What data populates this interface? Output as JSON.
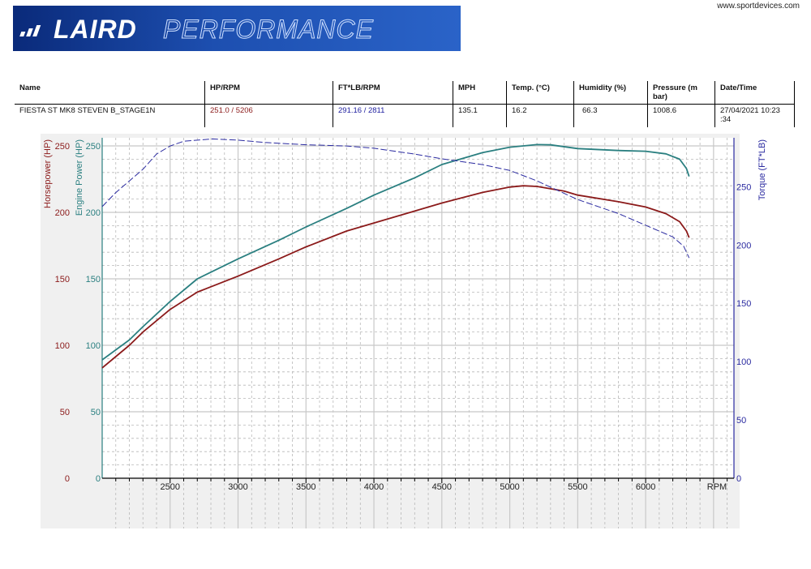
{
  "header": {
    "logo_text": "LAIRDPERFORMANCE",
    "website": "www.sportdevices.com"
  },
  "table": {
    "columns": [
      "Name",
      "HP/RPM",
      "FT*LB/RPM",
      "MPH",
      "Temp. (°C)",
      "Humidity (%)",
      "Pressure (m bar)",
      "Date/Time"
    ],
    "row": [
      "FIESTA ST MK8 STEVEN B_STAGE1N",
      "251.0 / 5206",
      "291.16 / 2811",
      "135.1",
      "16.2",
      "66.3",
      "1008.6",
      "27/04/2021 10:23 :34"
    ]
  },
  "colors": {
    "horsepower": "#8b1a1a",
    "engine_power": "#2a7f80",
    "torque": "#2a2aa0",
    "plot_bg": "#ffffff",
    "frame_bg": "#f0f0f0"
  },
  "chart_data": {
    "type": "line",
    "xlabel": "RPM",
    "xlim": [
      2000,
      6650
    ],
    "x_ticks": [
      2500,
      3000,
      3500,
      4000,
      4500,
      5000,
      5500,
      6000
    ],
    "grid": true,
    "axes": [
      {
        "id": "hp",
        "label": "Horsepower (HP)",
        "side": "left",
        "ylim": [
          0,
          250
        ],
        "ticks": [
          0,
          50,
          100,
          150,
          200,
          250
        ]
      },
      {
        "id": "ep",
        "label": "Engine Power (HP)",
        "side": "left",
        "ylim": [
          0,
          250
        ],
        "ticks": [
          0,
          50,
          100,
          150,
          200,
          250
        ]
      },
      {
        "id": "tq",
        "label": "Torque (FT*LB)",
        "side": "right",
        "ylim": [
          0,
          292
        ],
        "ticks": [
          0,
          50,
          100,
          150,
          200,
          250
        ]
      }
    ],
    "series": [
      {
        "axis": "hp",
        "style": "solid",
        "x": [
          2000,
          2200,
          2300,
          2500,
          2700,
          3000,
          3300,
          3500,
          3800,
          4000,
          4300,
          4500,
          4800,
          5000,
          5100,
          5200,
          5400,
          5500,
          5800,
          6000,
          6150,
          6250,
          6300,
          6320
        ],
        "y": [
          83,
          100,
          110,
          127,
          140,
          152,
          165,
          174,
          186,
          192,
          201,
          207,
          215,
          219,
          220,
          219.5,
          216,
          213,
          208,
          204,
          199,
          193,
          186,
          181
        ]
      },
      {
        "axis": "ep",
        "style": "solid",
        "x": [
          2000,
          2200,
          2300,
          2500,
          2700,
          3000,
          3300,
          3500,
          3800,
          4000,
          4300,
          4500,
          4800,
          5000,
          5200,
          5300,
          5500,
          5800,
          6000,
          6150,
          6250,
          6300,
          6320
        ],
        "y": [
          89,
          104,
          114,
          133,
          150,
          165,
          179,
          189,
          203,
          213,
          226,
          236,
          245,
          249,
          251,
          250.8,
          248,
          246.5,
          246,
          244,
          240,
          233,
          227
        ]
      },
      {
        "axis": "tq",
        "style": "dashed",
        "x": [
          2000,
          2100,
          2200,
          2300,
          2400,
          2500,
          2600,
          2811,
          3000,
          3200,
          3500,
          3800,
          4000,
          4300,
          4500,
          4800,
          5000,
          5200,
          5500,
          5800,
          6000,
          6200,
          6280,
          6320
        ],
        "y": [
          233,
          245,
          255,
          265,
          278,
          285,
          289,
          291,
          290,
          288,
          286,
          285,
          283,
          278,
          274,
          269,
          264,
          255,
          239,
          227,
          217,
          207,
          199,
          189
        ]
      }
    ]
  }
}
